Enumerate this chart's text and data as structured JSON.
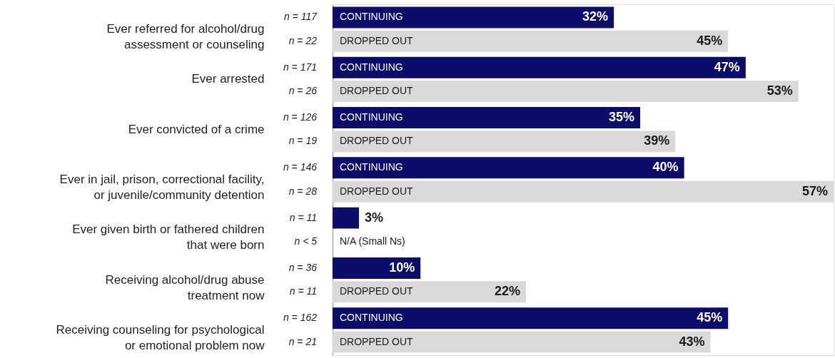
{
  "chart_data": {
    "type": "bar",
    "orientation": "horizontal",
    "categories": [
      "Ever referred for alcohol/drug\nassessment or counseling",
      "Ever arrested",
      "Ever convicted of a crime",
      "Ever in jail, prison, correctional facility,\nor juvenile/community detention",
      "Ever given birth or fathered children\nthat were born",
      "Receiving alcohol/drug abuse\ntreatment now",
      "Receiving counseling for psychological\nor emotional problem now"
    ],
    "series": [
      {
        "name": "CONTINUING",
        "color": "#0c0c6b",
        "values": [
          32,
          47,
          35,
          40,
          3,
          10,
          45
        ],
        "value_labels": [
          "32%",
          "47%",
          "35%",
          "40%",
          "3%",
          "10%",
          "45%"
        ]
      },
      {
        "name": "DROPPED OUT",
        "color": "#d9d9d9",
        "values": [
          45,
          53,
          39,
          57,
          null,
          22,
          43
        ],
        "value_labels": [
          "45%",
          "53%",
          "39%",
          "57%",
          null,
          "22%",
          "43%"
        ]
      }
    ],
    "annotations": [
      "n = 117",
      "n = 22",
      "n = 171",
      "n = 26",
      "n = 126",
      "n = 19",
      "n = 146",
      "n = 28",
      "n = 11",
      "n < 5",
      "n = 36",
      "n = 11",
      "n = 162",
      "n = 21",
      "N/A (Small Ns)"
    ]
  }
}
